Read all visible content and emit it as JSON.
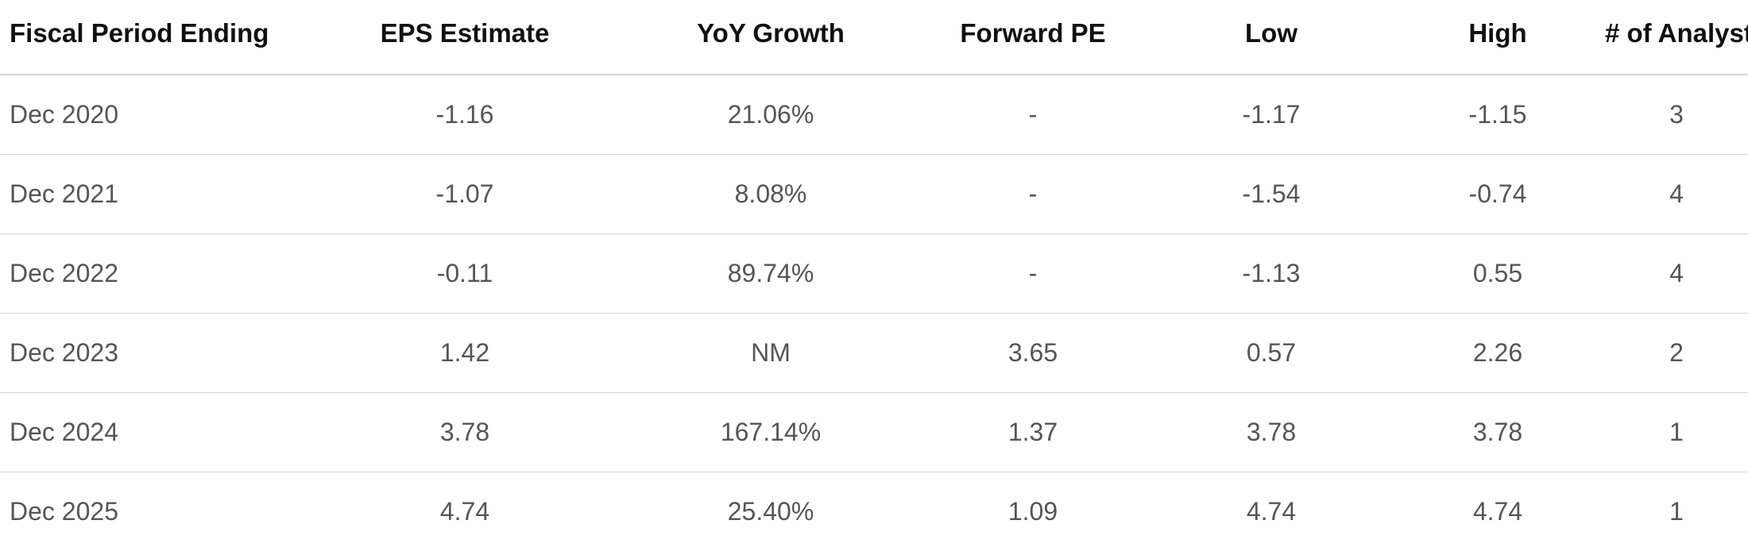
{
  "table": {
    "headers": [
      "Fiscal Period Ending",
      "EPS Estimate",
      "YoY Growth",
      "Forward PE",
      "Low",
      "High",
      "# of Analysts"
    ],
    "rows": [
      [
        "Dec 2020",
        "-1.16",
        "21.06%",
        "-",
        "-1.17",
        "-1.15",
        "3"
      ],
      [
        "Dec 2021",
        "-1.07",
        "8.08%",
        "-",
        "-1.54",
        "-0.74",
        "4"
      ],
      [
        "Dec 2022",
        "-0.11",
        "89.74%",
        "-",
        "-1.13",
        "0.55",
        "4"
      ],
      [
        "Dec 2023",
        "1.42",
        "NM",
        "3.65",
        "0.57",
        "2.26",
        "2"
      ],
      [
        "Dec 2024",
        "3.78",
        "167.14%",
        "1.37",
        "3.78",
        "3.78",
        "1"
      ],
      [
        "Dec 2025",
        "4.74",
        "25.40%",
        "1.09",
        "4.74",
        "4.74",
        "1"
      ]
    ]
  }
}
